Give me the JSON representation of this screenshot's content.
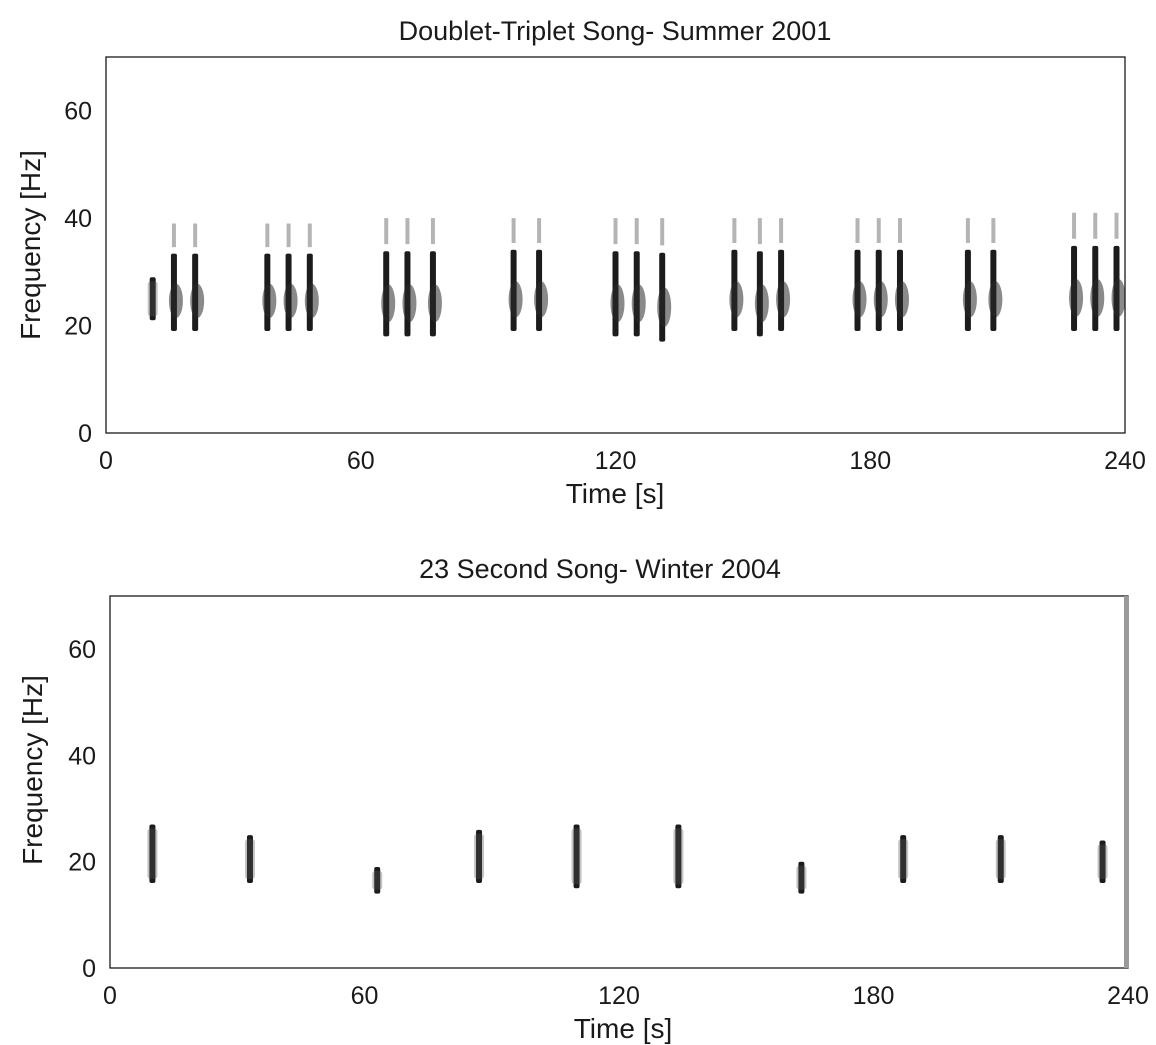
{
  "chart_data": [
    {
      "type": "spectrogram",
      "title": "Doublet-Triplet Song- Summer 2001",
      "xlabel": "Time [s]",
      "ylabel": "Frequency [Hz]",
      "xlim": [
        0,
        240
      ],
      "ylim": [
        0,
        70
      ],
      "xticks": [
        0,
        60,
        120,
        180,
        240
      ],
      "xtick_labels": [
        "0",
        "60",
        "120",
        "180",
        "240"
      ],
      "yticks": [
        0,
        20,
        40,
        60
      ],
      "ytick_labels": [
        "0",
        "20",
        "40",
        "60"
      ],
      "grid": false,
      "units": [
        {
          "t": 11,
          "f_low": 21,
          "f_high": 29
        },
        {
          "t": 16,
          "f_low": 19,
          "f_high": 39
        },
        {
          "t": 21,
          "f_low": 19,
          "f_high": 39
        },
        {
          "t": 38,
          "f_low": 19,
          "f_high": 39
        },
        {
          "t": 43,
          "f_low": 19,
          "f_high": 39
        },
        {
          "t": 48,
          "f_low": 19,
          "f_high": 39
        },
        {
          "t": 66,
          "f_low": 18,
          "f_high": 40
        },
        {
          "t": 71,
          "f_low": 18,
          "f_high": 40
        },
        {
          "t": 77,
          "f_low": 18,
          "f_high": 40
        },
        {
          "t": 96,
          "f_low": 19,
          "f_high": 40
        },
        {
          "t": 102,
          "f_low": 19,
          "f_high": 40
        },
        {
          "t": 120,
          "f_low": 18,
          "f_high": 40
        },
        {
          "t": 125,
          "f_low": 18,
          "f_high": 40
        },
        {
          "t": 131,
          "f_low": 17,
          "f_high": 40
        },
        {
          "t": 148,
          "f_low": 19,
          "f_high": 40
        },
        {
          "t": 154,
          "f_low": 18,
          "f_high": 40
        },
        {
          "t": 159,
          "f_low": 19,
          "f_high": 40
        },
        {
          "t": 177,
          "f_low": 19,
          "f_high": 40
        },
        {
          "t": 182,
          "f_low": 19,
          "f_high": 40
        },
        {
          "t": 187,
          "f_low": 19,
          "f_high": 40
        },
        {
          "t": 203,
          "f_low": 19,
          "f_high": 40
        },
        {
          "t": 209,
          "f_low": 19,
          "f_high": 40
        },
        {
          "t": 228,
          "f_low": 19,
          "f_high": 41
        },
        {
          "t": 233,
          "f_low": 19,
          "f_high": 41
        },
        {
          "t": 238,
          "f_low": 19,
          "f_high": 41
        }
      ]
    },
    {
      "type": "spectrogram",
      "title": "23 Second Song- Winter 2004",
      "xlabel": "Time [s]",
      "ylabel": "Frequency [Hz]",
      "xlim": [
        0,
        240
      ],
      "ylim": [
        0,
        70
      ],
      "xticks": [
        0,
        60,
        120,
        180,
        240
      ],
      "xtick_labels": [
        "0",
        "60",
        "120",
        "180",
        "240"
      ],
      "yticks": [
        0,
        20,
        40,
        60
      ],
      "ytick_labels": [
        "0",
        "20",
        "40",
        "60"
      ],
      "grid": false,
      "units": [
        {
          "t": 10,
          "f_low": 16,
          "f_high": 27
        },
        {
          "t": 33,
          "f_low": 16,
          "f_high": 25
        },
        {
          "t": 63,
          "f_low": 14,
          "f_high": 19
        },
        {
          "t": 87,
          "f_low": 16,
          "f_high": 26
        },
        {
          "t": 110,
          "f_low": 15,
          "f_high": 27
        },
        {
          "t": 134,
          "f_low": 15,
          "f_high": 27
        },
        {
          "t": 163,
          "f_low": 14,
          "f_high": 20
        },
        {
          "t": 187,
          "f_low": 16,
          "f_high": 25
        },
        {
          "t": 210,
          "f_low": 16,
          "f_high": 25
        },
        {
          "t": 234,
          "f_low": 16,
          "f_high": 24
        }
      ]
    }
  ]
}
